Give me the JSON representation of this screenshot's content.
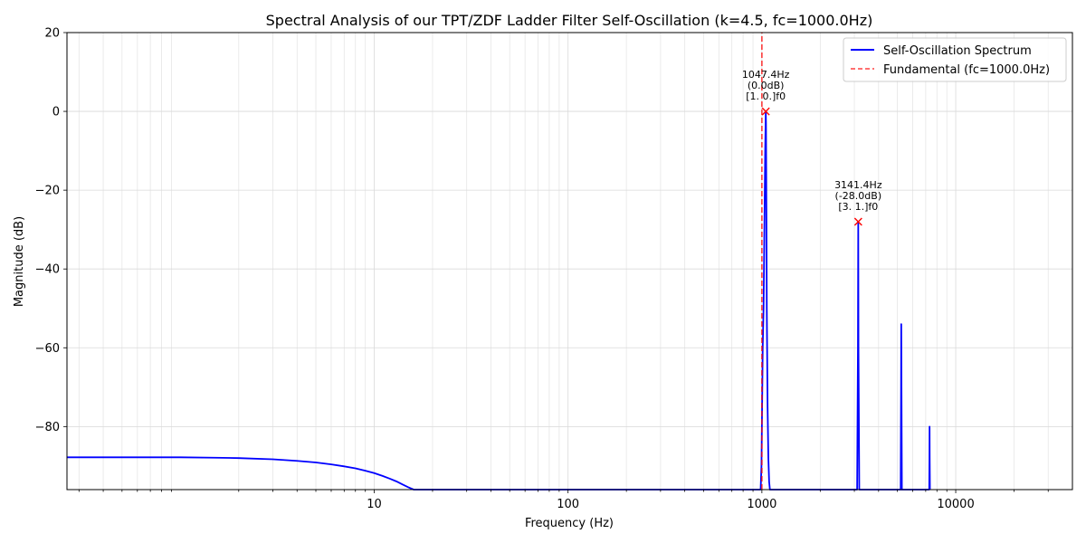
{
  "chart_data": {
    "type": "line",
    "title": "Spectral Analysis of our TPT/ZDF Ladder Filter Self-Oscillation (k=4.5, fc=1000.0Hz)",
    "xlabel": "Frequency (Hz)",
    "ylabel": "Magnitude (dB)",
    "xscale": "log",
    "xlim": [
      0.26,
      40000
    ],
    "ylim": [
      -96,
      20
    ],
    "grid": true,
    "legend_position": "top-right",
    "x_ticks": [
      {
        "value": 10,
        "label": "10"
      },
      {
        "value": 100,
        "label": "100"
      },
      {
        "value": 1000,
        "label": "1000"
      },
      {
        "value": 10000,
        "label": "10000"
      }
    ],
    "y_ticks": [
      {
        "value": 20,
        "label": "20"
      },
      {
        "value": 0,
        "label": "0"
      },
      {
        "value": -20,
        "label": "−20"
      },
      {
        "value": -40,
        "label": "−40"
      },
      {
        "value": -60,
        "label": "−60"
      },
      {
        "value": -80,
        "label": "−80"
      }
    ],
    "series": [
      {
        "name": "Self-Oscillation Spectrum",
        "color": "#0000ff",
        "style": "solid",
        "x": [
          0.26,
          0.5,
          1.0,
          1.5,
          2.0,
          3.0,
          4.0,
          5.0,
          6.0,
          7.0,
          8.0,
          9.0,
          10.0,
          11.0,
          12.0,
          13.0,
          14.0,
          15.0,
          16.0,
          17.0,
          985,
          995,
          1000,
          1010,
          1020,
          1030,
          1040,
          1045,
          1047.4,
          1050,
          1055,
          1060,
          1070,
          1080,
          1090,
          1100,
          3100,
          3130,
          3141.4,
          3150,
          3180,
          5200,
          5225,
          5236,
          5250,
          5275,
          7300,
          7320,
          7330,
          7340,
          7360
        ],
        "y": [
          -87.8,
          -87.8,
          -87.8,
          -87.9,
          -88.0,
          -88.3,
          -88.7,
          -89.1,
          -89.6,
          -90.1,
          -90.6,
          -91.2,
          -91.8,
          -92.5,
          -93.2,
          -93.9,
          -94.7,
          -95.4,
          -96.0,
          -96.5,
          -96.0,
          -90.0,
          -80.0,
          -60.0,
          -50.0,
          -30.0,
          -10.0,
          -3.0,
          0.0,
          -3.0,
          -25.0,
          -50.0,
          -75.0,
          -88.0,
          -94.0,
          -96.0,
          -96.0,
          -60.0,
          -28.0,
          -60.0,
          -96.0,
          -96.0,
          -70.0,
          -54.0,
          -70.0,
          -96.0,
          -96.0,
          -88.0,
          -80.0,
          -88.0,
          -96.0
        ]
      },
      {
        "name": "Fundamental (fc=1000.0Hz)",
        "color": "#ff0000",
        "style": "dashed",
        "x": [
          1000,
          1000
        ],
        "y": [
          -96,
          20
        ]
      }
    ],
    "peaks": [
      {
        "x": 1047.4,
        "y": 0.0,
        "lines": [
          "1047.4Hz",
          "(0.0dB)",
          "[1. 0.]f0"
        ]
      },
      {
        "x": 3141.4,
        "y": -28.0,
        "lines": [
          "3141.4Hz",
          "(-28.0dB)",
          "[3. 1.]f0"
        ]
      }
    ]
  }
}
